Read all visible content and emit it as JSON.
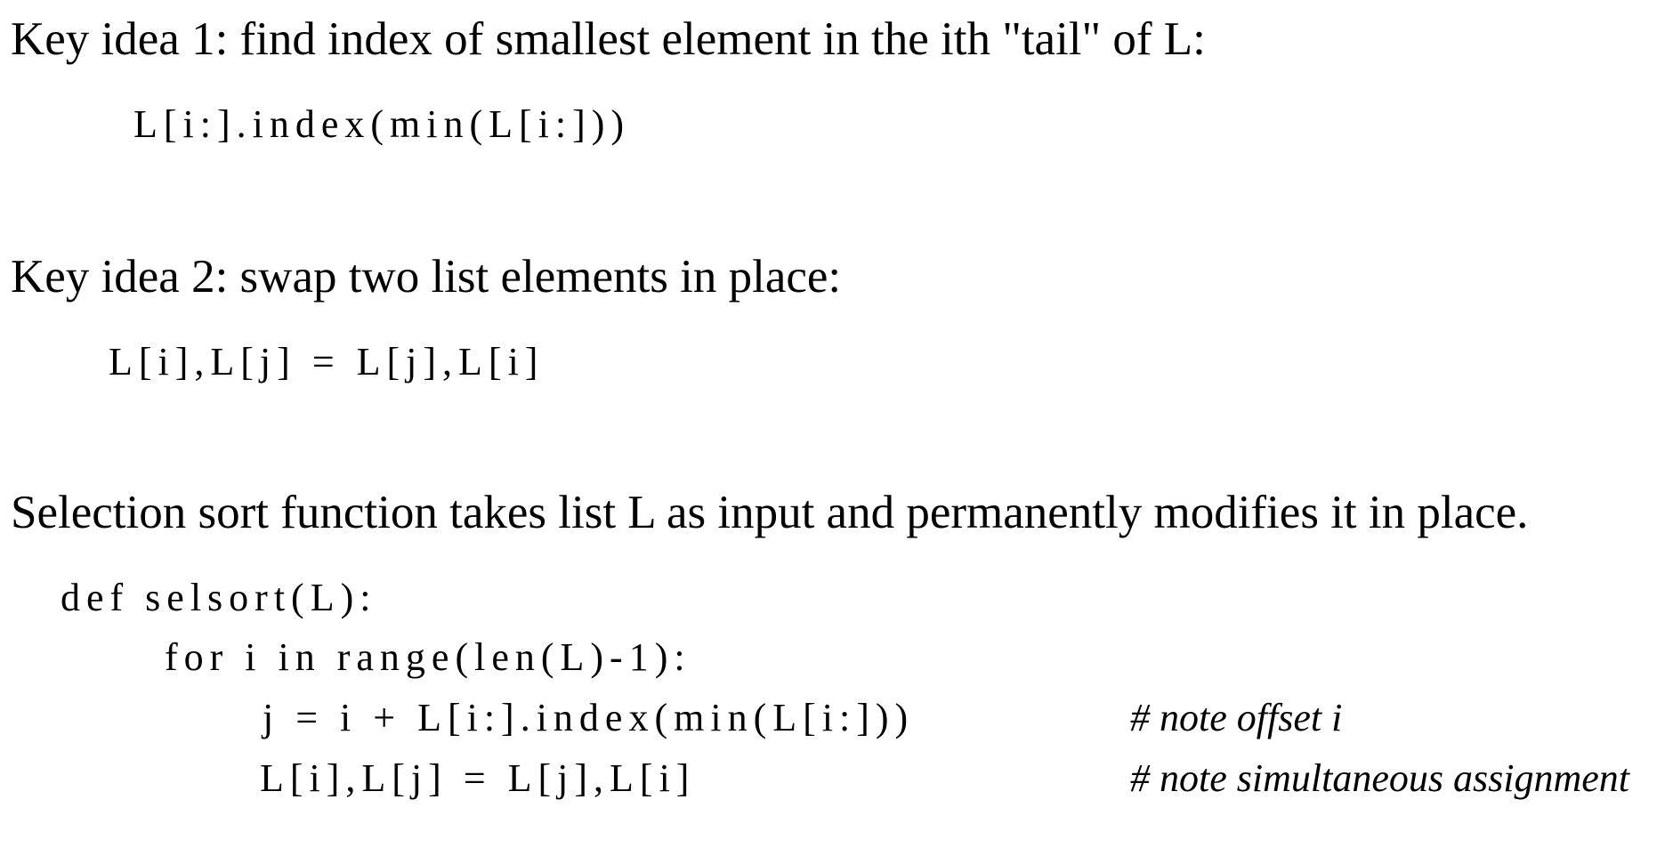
{
  "key_idea_1": {
    "text": "Key idea 1: find index of smallest element in the ith \"tail\" of L:",
    "code": "L[i:].index(min(L[i:]))"
  },
  "key_idea_2": {
    "text": "Key idea 2: swap two list elements in place:",
    "code": "L[i],L[j] = L[j],L[i]"
  },
  "selection_sort": {
    "text": "Selection sort function takes list L as input and permanently modifies it in place.",
    "code_lines": [
      "def selsort(L):",
      "for i in range(len(L)-1):",
      "j = i + L[i:].index(min(L[i:]))",
      "L[i],L[j] = L[j],L[i]"
    ],
    "comments": [
      "# note offset i",
      "# note simultaneous assignment"
    ]
  }
}
